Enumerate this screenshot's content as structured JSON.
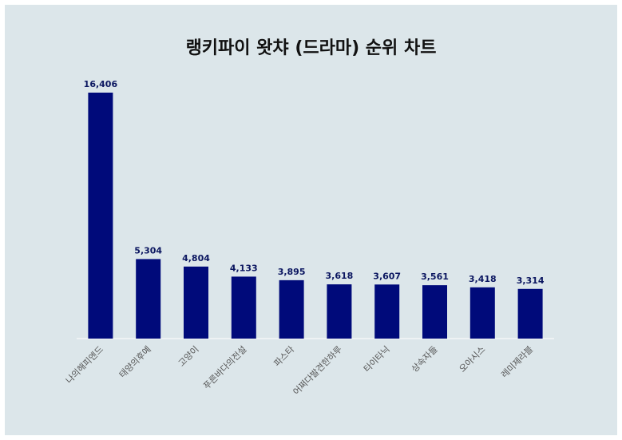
{
  "chart_data": {
    "type": "bar",
    "title": "랭키파이 왓챠 (드라마) 순위 차트",
    "categories": [
      "나의해피엔드",
      "태양의후예",
      "고양이",
      "푸른바다의전설",
      "파스타",
      "어쩌다발견한하루",
      "타이타닉",
      "상속자들",
      "오아시스",
      "레미제라블"
    ],
    "values": [
      16406,
      5304,
      4804,
      4133,
      3895,
      3618,
      3607,
      3561,
      3418,
      3314
    ],
    "value_labels": [
      "16,406",
      "5,304",
      "4,804",
      "4,133",
      "3,895",
      "3,618",
      "3,607",
      "3,561",
      "3,418",
      "3,314"
    ],
    "xlabel": "",
    "ylabel": "",
    "ylim": [
      0,
      16406
    ],
    "grid": false,
    "legend": "none",
    "colors": {
      "bar": "#000a7a",
      "value_label": "#0b1660",
      "tick_label": "#555555",
      "background": "#dce6ea",
      "baseline": "#ffffff"
    }
  }
}
